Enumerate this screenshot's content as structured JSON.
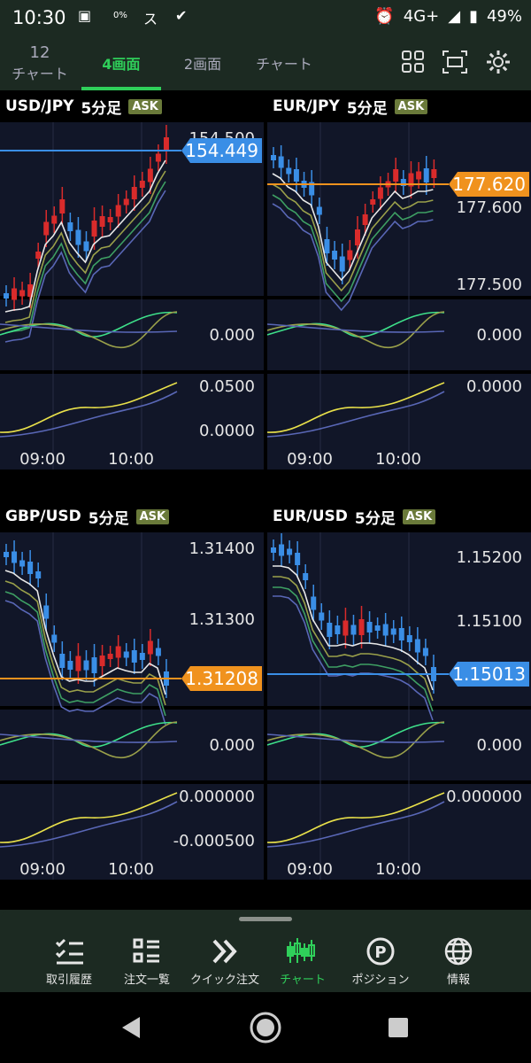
{
  "status_bar": {
    "time": "10:30",
    "data_saver": "0%",
    "network": "4G+",
    "battery": "49%"
  },
  "top_tabs": [
    {
      "id": "grid12",
      "line1": "12",
      "line2": "チャート",
      "active": false
    },
    {
      "id": "grid4",
      "label": "4画面",
      "active": true
    },
    {
      "id": "grid2",
      "label": "2画面",
      "active": false
    },
    {
      "id": "single",
      "label": "チャート",
      "active": false
    }
  ],
  "top_icons": [
    "grid-view-icon",
    "screen-capture-icon",
    "settings-icon"
  ],
  "charts": [
    {
      "pair": "USD/JPY",
      "interval": "5分足",
      "side": "ASK",
      "price_labels": [
        "154.500"
      ],
      "current": "154.449",
      "current_color": "#3a8ee6",
      "osc1_label": "0.000",
      "osc2_labels": [
        "0.0500",
        "0.0000"
      ],
      "times": [
        "09:00",
        "10:00"
      ]
    },
    {
      "pair": "EUR/JPY",
      "interval": "5分足",
      "side": "ASK",
      "price_labels": [
        "177.600",
        "177.500"
      ],
      "current": "177.620",
      "current_color": "#f0921e",
      "osc1_label": "0.000",
      "osc2_labels": [
        "0.0000"
      ],
      "times": [
        "09:00",
        "10:00"
      ]
    },
    {
      "pair": "GBP/USD",
      "interval": "5分足",
      "side": "ASK",
      "price_labels": [
        "1.31400",
        "1.31300"
      ],
      "current": "1.31208",
      "current_color": "#f0921e",
      "osc1_label": "0.000",
      "osc2_labels": [
        "0.000000",
        "-0.000500"
      ],
      "times": [
        "09:00",
        "10:00"
      ]
    },
    {
      "pair": "EUR/USD",
      "interval": "5分足",
      "side": "ASK",
      "price_labels": [
        "1.15200",
        "1.15100"
      ],
      "current": "1.15013",
      "current_color": "#3a8ee6",
      "osc1_label": "0.000",
      "osc2_labels": [
        "0.000000"
      ],
      "times": [
        "09:00",
        "10:00"
      ]
    }
  ],
  "bottom_nav": [
    {
      "label": "取引履歴",
      "icon": "trade-history-icon",
      "active": false
    },
    {
      "label": "注文一覧",
      "icon": "order-list-icon",
      "active": false
    },
    {
      "label": "クイック注文",
      "icon": "quick-order-icon",
      "active": false
    },
    {
      "label": "チャート",
      "icon": "chart-icon",
      "active": true
    },
    {
      "label": "ポジション",
      "icon": "position-icon",
      "active": false
    },
    {
      "label": "情報",
      "icon": "info-globe-icon",
      "active": false
    }
  ],
  "colors": {
    "accent": "#2fcf5a",
    "up": "#d92b2b",
    "down": "#3a8ee6",
    "ask_badge": "#6a7a3a"
  }
}
